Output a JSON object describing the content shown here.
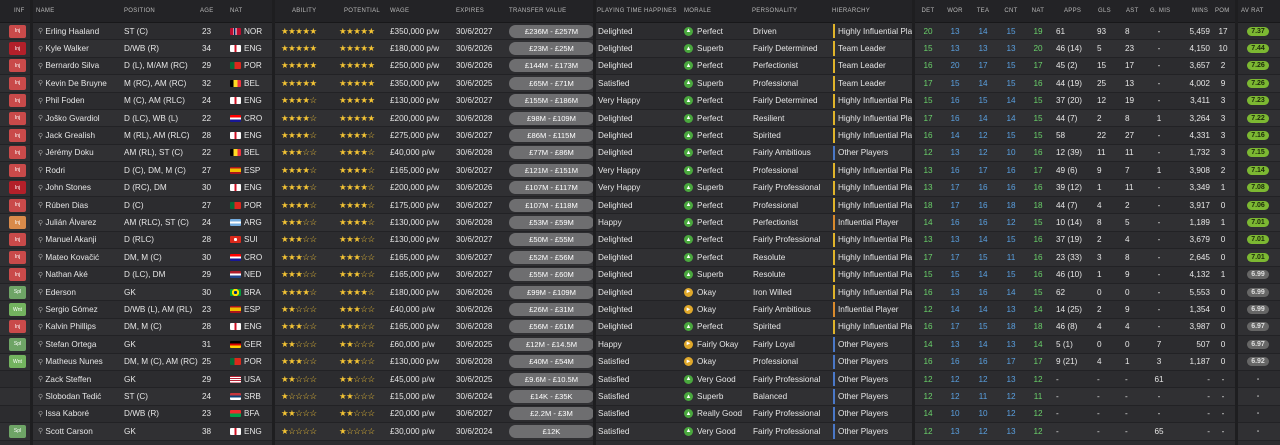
{
  "headers": {
    "inf": "INF",
    "name": "NAME",
    "position": "POSITION",
    "age": "AGE",
    "nat": "NAT",
    "ability": "ABILITY",
    "potential": "POTENTIAL",
    "wage": "WAGE",
    "expires": "EXPIRES",
    "transfer_value": "TRANSFER VALUE",
    "playing_time": "PLAYING TIME HAPPINESS",
    "morale": "MORALE",
    "personality": "PERSONALITY",
    "hierarchy": "HIERARCHY",
    "det": "DET",
    "wor": "WOR",
    "tea": "TEA",
    "cnt": "CNT",
    "natt": "NAT",
    "apps": "APPS",
    "gls": "GLS",
    "ast": "AST",
    "gmis": "G. MIS",
    "mins": "MINS",
    "pom": "POM",
    "avrat": "AV RAT"
  },
  "colors": {
    "inj": "#c94a4a",
    "inj_dark": "#b3202a",
    "spl": "#6ea466",
    "wnt": "#73b35f",
    "mood_green": "#4aa83e",
    "mood_yellow": "#e0a82a",
    "rating_green": "#7cb832",
    "rating_grey": "#666",
    "hier_yellow": "#e0b42a",
    "hier_orange": "#d98a2c",
    "hier_blue": "#4a78c8"
  },
  "rows": [
    {
      "inf": "Inj",
      "infc": "inj",
      "name": "Erling Haaland",
      "pos": "ST (C)",
      "age": "23",
      "nat": "NOR",
      "flag": "nor",
      "ab": "★★★★★",
      "po": "★★★★★",
      "wage": "£350,000 p/w",
      "exp": "30/6/2027",
      "tv": "£236M - £257M",
      "pt": "Delighted",
      "mood": "Perfect",
      "moodc": "g",
      "pers": "Driven",
      "hier": "Highly Influential Player",
      "hc": "y",
      "det": "20",
      "wor": "13",
      "tea": "14",
      "cnt": "15",
      "natt": "19",
      "apps": "61",
      "gls": "93",
      "ast": "8",
      "gmis": "-",
      "mins": "5,459",
      "pom": "17",
      "avr": "7.37",
      "ag": true
    },
    {
      "inf": "Inj",
      "infc": "inj2",
      "name": "Kyle Walker",
      "pos": "D/WB (R)",
      "age": "34",
      "nat": "ENG",
      "flag": "eng",
      "ab": "★★★★★",
      "po": "★★★★★",
      "wage": "£180,000 p/w",
      "exp": "30/6/2026",
      "tv": "£23M - £25M",
      "pt": "Delighted",
      "mood": "Superb",
      "moodc": "g",
      "pers": "Fairly Determined",
      "hier": "Team Leader",
      "hc": "y",
      "det": "15",
      "wor": "13",
      "tea": "13",
      "cnt": "13",
      "natt": "20",
      "apps": "46 (14)",
      "gls": "5",
      "ast": "23",
      "gmis": "-",
      "mins": "4,150",
      "pom": "10",
      "avr": "7.44",
      "ag": true
    },
    {
      "inf": "Inj",
      "infc": "inj",
      "name": "Bernardo Silva",
      "pos": "D (L), M/AM (RC)",
      "age": "29",
      "nat": "POR",
      "flag": "por",
      "ab": "★★★★★",
      "po": "★★★★★",
      "wage": "£250,000 p/w",
      "exp": "30/6/2026",
      "tv": "£144M - £173M",
      "pt": "Delighted",
      "mood": "Perfect",
      "moodc": "g",
      "pers": "Perfectionist",
      "hier": "Team Leader",
      "hc": "y",
      "det": "16",
      "wor": "20",
      "tea": "17",
      "cnt": "15",
      "natt": "17",
      "apps": "45 (2)",
      "gls": "15",
      "ast": "17",
      "gmis": "-",
      "mins": "3,657",
      "pom": "2",
      "avr": "7.26",
      "ag": true
    },
    {
      "inf": "Inj",
      "infc": "inj",
      "name": "Kevin De Bruyne",
      "pos": "M (RC), AM (RC)",
      "age": "32",
      "nat": "BEL",
      "flag": "bel",
      "ab": "★★★★★",
      "po": "★★★★★",
      "wage": "£350,000 p/w",
      "exp": "30/6/2025",
      "tv": "£65M - £71M",
      "pt": "Satisfied",
      "mood": "Superb",
      "moodc": "g",
      "pers": "Professional",
      "hier": "Team Leader",
      "hc": "y",
      "det": "17",
      "wor": "15",
      "tea": "14",
      "cnt": "15",
      "natt": "16",
      "apps": "44 (19)",
      "gls": "25",
      "ast": "13",
      "gmis": "-",
      "mins": "4,002",
      "pom": "9",
      "avr": "7.26",
      "ag": true
    },
    {
      "inf": "Inj",
      "infc": "inj",
      "name": "Phil Foden",
      "pos": "M (C), AM (RLC)",
      "age": "24",
      "nat": "ENG",
      "flag": "eng",
      "ab": "★★★★☆",
      "po": "★★★★★",
      "wage": "£130,000 p/w",
      "exp": "30/6/2027",
      "tv": "£155M - £186M",
      "pt": "Very Happy",
      "mood": "Perfect",
      "moodc": "g",
      "pers": "Fairly Determined",
      "hier": "Highly Influential Player",
      "hc": "y",
      "det": "15",
      "wor": "16",
      "tea": "15",
      "cnt": "14",
      "natt": "15",
      "apps": "37 (20)",
      "gls": "12",
      "ast": "19",
      "gmis": "-",
      "mins": "3,411",
      "pom": "3",
      "avr": "7.23",
      "ag": true
    },
    {
      "inf": "Inj",
      "infc": "inj",
      "name": "Joško Gvardiol",
      "pos": "D (LC), WB (L)",
      "age": "22",
      "nat": "CRO",
      "flag": "cro",
      "ab": "★★★★☆",
      "po": "★★★★★",
      "wage": "£200,000 p/w",
      "exp": "30/6/2028",
      "tv": "£98M - £109M",
      "pt": "Delighted",
      "mood": "Perfect",
      "moodc": "g",
      "pers": "Resilient",
      "hier": "Highly Influential Player",
      "hc": "y",
      "det": "17",
      "wor": "16",
      "tea": "14",
      "cnt": "14",
      "natt": "15",
      "apps": "44 (7)",
      "gls": "2",
      "ast": "8",
      "gmis": "1",
      "mins": "3,264",
      "pom": "3",
      "avr": "7.22",
      "ag": true
    },
    {
      "inf": "Inj",
      "infc": "inj",
      "name": "Jack Grealish",
      "pos": "M (RL), AM (RLC)",
      "age": "28",
      "nat": "ENG",
      "flag": "eng",
      "ab": "★★★★☆",
      "po": "★★★★☆",
      "wage": "£275,000 p/w",
      "exp": "30/6/2027",
      "tv": "£86M - £115M",
      "pt": "Delighted",
      "mood": "Perfect",
      "moodc": "g",
      "pers": "Spirited",
      "hier": "Highly Influential Player",
      "hc": "y",
      "det": "16",
      "wor": "14",
      "tea": "12",
      "cnt": "15",
      "natt": "15",
      "apps": "58",
      "gls": "22",
      "ast": "27",
      "gmis": "-",
      "mins": "4,331",
      "pom": "3",
      "avr": "7.16",
      "ag": true
    },
    {
      "inf": "Inj",
      "infc": "inj",
      "name": "Jérémy Doku",
      "pos": "AM (RL), ST (C)",
      "age": "22",
      "nat": "BEL",
      "flag": "bel",
      "ab": "★★★☆☆",
      "po": "★★★★☆",
      "wage": "£40,000 p/w",
      "exp": "30/6/2028",
      "tv": "£77M - £86M",
      "pt": "Delighted",
      "mood": "Perfect",
      "moodc": "g",
      "pers": "Fairly Ambitious",
      "hier": "Other Players",
      "hc": "b",
      "det": "12",
      "wor": "13",
      "tea": "12",
      "cnt": "10",
      "natt": "16",
      "apps": "12 (39)",
      "gls": "11",
      "ast": "11",
      "gmis": "-",
      "mins": "1,732",
      "pom": "3",
      "avr": "7.15",
      "ag": true
    },
    {
      "inf": "Inj",
      "infc": "inj",
      "name": "Rodri",
      "pos": "D (C), DM, M (C)",
      "age": "27",
      "nat": "ESP",
      "flag": "esp",
      "ab": "★★★★☆",
      "po": "★★★★☆",
      "wage": "£165,000 p/w",
      "exp": "30/6/2027",
      "tv": "£121M - £151M",
      "pt": "Very Happy",
      "mood": "Perfect",
      "moodc": "g",
      "pers": "Professional",
      "hier": "Highly Influential Player",
      "hc": "y",
      "det": "13",
      "wor": "16",
      "tea": "17",
      "cnt": "16",
      "natt": "17",
      "apps": "49 (6)",
      "gls": "9",
      "ast": "7",
      "gmis": "1",
      "mins": "3,908",
      "pom": "2",
      "avr": "7.14",
      "ag": true
    },
    {
      "inf": "Inj",
      "infc": "inj2",
      "name": "John Stones",
      "pos": "D (RC), DM",
      "age": "30",
      "nat": "ENG",
      "flag": "eng",
      "ab": "★★★★☆",
      "po": "★★★★☆",
      "wage": "£200,000 p/w",
      "exp": "30/6/2026",
      "tv": "£107M - £117M",
      "pt": "Very Happy",
      "mood": "Superb",
      "moodc": "g",
      "pers": "Fairly Professional",
      "hier": "Highly Influential Player",
      "hc": "y",
      "det": "13",
      "wor": "17",
      "tea": "16",
      "cnt": "16",
      "natt": "16",
      "apps": "39 (12)",
      "gls": "1",
      "ast": "11",
      "gmis": "-",
      "mins": "3,349",
      "pom": "1",
      "avr": "7.08",
      "ag": true
    },
    {
      "inf": "Inj",
      "infc": "inj",
      "name": "Rúben Dias",
      "pos": "D (C)",
      "age": "27",
      "nat": "POR",
      "flag": "por",
      "ab": "★★★★☆",
      "po": "★★★★☆",
      "wage": "£175,000 p/w",
      "exp": "30/6/2027",
      "tv": "£107M - £118M",
      "pt": "Delighted",
      "mood": "Perfect",
      "moodc": "g",
      "pers": "Professional",
      "hier": "Highly Influential Player",
      "hc": "y",
      "det": "18",
      "wor": "17",
      "tea": "16",
      "cnt": "18",
      "natt": "18",
      "apps": "44 (7)",
      "gls": "4",
      "ast": "2",
      "gmis": "-",
      "mins": "3,917",
      "pom": "0",
      "avr": "7.06",
      "ag": true
    },
    {
      "inf": "Inj",
      "infc": "infor",
      "name": "Julián Álvarez",
      "pos": "AM (RLC), ST (C)",
      "age": "24",
      "nat": "ARG",
      "flag": "arg",
      "ab": "★★★☆☆",
      "po": "★★★★☆",
      "wage": "£130,000 p/w",
      "exp": "30/6/2028",
      "tv": "£53M - £59M",
      "pt": "Happy",
      "mood": "Perfect",
      "moodc": "g",
      "pers": "Perfectionist",
      "hier": "Influential Player",
      "hc": "o",
      "det": "14",
      "wor": "16",
      "tea": "16",
      "cnt": "12",
      "natt": "15",
      "apps": "10 (14)",
      "gls": "8",
      "ast": "5",
      "gmis": "-",
      "mins": "1,189",
      "pom": "1",
      "avr": "7.01",
      "ag": true
    },
    {
      "inf": "Inj",
      "infc": "inj",
      "name": "Manuel Akanji",
      "pos": "D (RLC)",
      "age": "28",
      "nat": "SUI",
      "flag": "sui",
      "ab": "★★★☆☆",
      "po": "★★★☆☆",
      "wage": "£130,000 p/w",
      "exp": "30/6/2027",
      "tv": "£50M - £55M",
      "pt": "Delighted",
      "mood": "Perfect",
      "moodc": "g",
      "pers": "Fairly Professional",
      "hier": "Highly Influential Player",
      "hc": "y",
      "det": "13",
      "wor": "13",
      "tea": "14",
      "cnt": "15",
      "natt": "16",
      "apps": "37 (19)",
      "gls": "2",
      "ast": "4",
      "gmis": "-",
      "mins": "3,679",
      "pom": "0",
      "avr": "7.01",
      "ag": true
    },
    {
      "inf": "Inj",
      "infc": "inj",
      "name": "Mateo Kovačić",
      "pos": "DM, M (C)",
      "age": "30",
      "nat": "CRO",
      "flag": "cro",
      "ab": "★★★☆☆",
      "po": "★★★☆☆",
      "wage": "£165,000 p/w",
      "exp": "30/6/2027",
      "tv": "£52M - £56M",
      "pt": "Delighted",
      "mood": "Perfect",
      "moodc": "g",
      "pers": "Resolute",
      "hier": "Highly Influential Player",
      "hc": "y",
      "det": "17",
      "wor": "17",
      "tea": "15",
      "cnt": "11",
      "natt": "16",
      "apps": "23 (33)",
      "gls": "3",
      "ast": "8",
      "gmis": "-",
      "mins": "2,645",
      "pom": "0",
      "avr": "7.01",
      "ag": true
    },
    {
      "inf": "Inj",
      "infc": "inj",
      "name": "Nathan Aké",
      "pos": "D (LC), DM",
      "age": "29",
      "nat": "NED",
      "flag": "ned",
      "ab": "★★★☆☆",
      "po": "★★★☆☆",
      "wage": "£165,000 p/w",
      "exp": "30/6/2027",
      "tv": "£55M - £60M",
      "pt": "Delighted",
      "mood": "Superb",
      "moodc": "g",
      "pers": "Resolute",
      "hier": "Highly Influential Player",
      "hc": "y",
      "det": "15",
      "wor": "15",
      "tea": "14",
      "cnt": "15",
      "natt": "16",
      "apps": "46 (10)",
      "gls": "1",
      "ast": "9",
      "gmis": "-",
      "mins": "4,132",
      "pom": "1",
      "avr": "6.99",
      "ag": false
    },
    {
      "inf": "Spl",
      "infc": "spl",
      "name": "Ederson",
      "pos": "GK",
      "age": "30",
      "nat": "BRA",
      "flag": "bra",
      "ab": "★★★★☆",
      "po": "★★★★☆",
      "wage": "£180,000 p/w",
      "exp": "30/6/2026",
      "tv": "£99M - £109M",
      "pt": "Delighted",
      "mood": "Okay",
      "moodc": "y",
      "pers": "Iron Willed",
      "hier": "Highly Influential Player",
      "hc": "y",
      "det": "16",
      "wor": "13",
      "tea": "16",
      "cnt": "14",
      "natt": "15",
      "apps": "62",
      "gls": "0",
      "ast": "0",
      "gmis": "-",
      "mins": "5,553",
      "pom": "0",
      "avr": "6.99",
      "ag": false
    },
    {
      "inf": "Wnt",
      "infc": "wnt",
      "name": "Sergio Gómez",
      "pos": "D/WB (L), AM (RL)",
      "age": "23",
      "nat": "ESP",
      "flag": "esp",
      "ab": "★★☆☆☆",
      "po": "★★★☆☆",
      "wage": "£40,000 p/w",
      "exp": "30/6/2026",
      "tv": "£26M - £31M",
      "pt": "Delighted",
      "mood": "Okay",
      "moodc": "y",
      "pers": "Fairly Ambitious",
      "hier": "Influential Player",
      "hc": "o",
      "det": "12",
      "wor": "14",
      "tea": "14",
      "cnt": "13",
      "natt": "14",
      "apps": "14 (25)",
      "gls": "2",
      "ast": "9",
      "gmis": "-",
      "mins": "1,354",
      "pom": "0",
      "avr": "6.99",
      "ag": false
    },
    {
      "inf": "Inj",
      "infc": "inj",
      "name": "Kalvin Phillips",
      "pos": "DM, M (C)",
      "age": "28",
      "nat": "ENG",
      "flag": "eng",
      "ab": "★★★☆☆",
      "po": "★★★☆☆",
      "wage": "£165,000 p/w",
      "exp": "30/6/2028",
      "tv": "£56M - £61M",
      "pt": "Delighted",
      "mood": "Perfect",
      "moodc": "g",
      "pers": "Spirited",
      "hier": "Highly Influential Player",
      "hc": "y",
      "det": "16",
      "wor": "17",
      "tea": "15",
      "cnt": "18",
      "natt": "18",
      "apps": "46 (8)",
      "gls": "4",
      "ast": "4",
      "gmis": "-",
      "mins": "3,987",
      "pom": "0",
      "avr": "6.97",
      "ag": false
    },
    {
      "inf": "Spl",
      "infc": "spl",
      "name": "Stefan Ortega",
      "pos": "GK",
      "age": "31",
      "nat": "GER",
      "flag": "ger",
      "ab": "★★☆☆☆",
      "po": "★★☆☆☆",
      "wage": "£60,000 p/w",
      "exp": "30/6/2025",
      "tv": "£12M - £14.5M",
      "pt": "Happy",
      "mood": "Fairly Okay",
      "moodc": "y",
      "pers": "Fairly Loyal",
      "hier": "Other Players",
      "hc": "b",
      "det": "14",
      "wor": "13",
      "tea": "14",
      "cnt": "13",
      "natt": "14",
      "apps": "5 (1)",
      "gls": "0",
      "ast": "0",
      "gmis": "7",
      "mins": "507",
      "pom": "0",
      "avr": "6.97",
      "ag": false
    },
    {
      "inf": "Wnt",
      "infc": "wnt",
      "name": "Matheus Nunes",
      "pos": "DM, M (C), AM (RC)",
      "age": "25",
      "nat": "POR",
      "flag": "por",
      "ab": "★★★☆☆",
      "po": "★★★☆☆",
      "wage": "£130,000 p/w",
      "exp": "30/6/2028",
      "tv": "£40M - £54M",
      "pt": "Satisfied",
      "mood": "Okay",
      "moodc": "y",
      "pers": "Professional",
      "hier": "Other Players",
      "hc": "b",
      "det": "16",
      "wor": "16",
      "tea": "16",
      "cnt": "17",
      "natt": "17",
      "apps": "9 (21)",
      "gls": "4",
      "ast": "1",
      "gmis": "3",
      "mins": "1,187",
      "pom": "0",
      "avr": "6.92",
      "ag": false
    },
    {
      "inf": "",
      "infc": "",
      "name": "Zack Steffen",
      "pos": "GK",
      "age": "29",
      "nat": "USA",
      "flag": "usa",
      "ab": "★★☆☆☆",
      "po": "★★☆☆☆",
      "wage": "£45,000 p/w",
      "exp": "30/6/2025",
      "tv": "£9.6M - £10.5M",
      "pt": "Satisfied",
      "mood": "Very Good",
      "moodc": "g",
      "pers": "Fairly Professional",
      "hier": "Other Players",
      "hc": "b",
      "det": "12",
      "wor": "12",
      "tea": "12",
      "cnt": "13",
      "natt": "12",
      "apps": "-",
      "gls": "-",
      "ast": "-",
      "gmis": "61",
      "mins": "-",
      "pom": "-",
      "avr": "-",
      "ag": false
    },
    {
      "inf": "",
      "infc": "",
      "name": "Slobodan Tedić",
      "pos": "ST (C)",
      "age": "24",
      "nat": "SRB",
      "flag": "srb",
      "ab": "★☆☆☆☆",
      "po": "★★☆☆☆",
      "wage": "£15,000 p/w",
      "exp": "30/6/2024",
      "tv": "£14K - £35K",
      "pt": "Satisfied",
      "mood": "Superb",
      "moodc": "g",
      "pers": "Balanced",
      "hier": "Other Players",
      "hc": "b",
      "det": "12",
      "wor": "12",
      "tea": "11",
      "cnt": "12",
      "natt": "11",
      "apps": "-",
      "gls": "-",
      "ast": "-",
      "gmis": "-",
      "mins": "-",
      "pom": "-",
      "avr": "-",
      "ag": false
    },
    {
      "inf": "",
      "infc": "",
      "name": "Issa Kaboré",
      "pos": "D/WB (R)",
      "age": "23",
      "nat": "BFA",
      "flag": "bfa",
      "ab": "★★☆☆☆",
      "po": "★★☆☆☆",
      "wage": "£20,000 p/w",
      "exp": "30/6/2027",
      "tv": "£2.2M - £3M",
      "pt": "Satisfied",
      "mood": "Really Good",
      "moodc": "g",
      "pers": "Fairly Professional",
      "hier": "Other Players",
      "hc": "b",
      "det": "14",
      "wor": "10",
      "tea": "10",
      "cnt": "12",
      "natt": "12",
      "apps": "-",
      "gls": "-",
      "ast": "-",
      "gmis": "-",
      "mins": "-",
      "pom": "-",
      "avr": "-",
      "ag": false
    },
    {
      "inf": "Spl",
      "infc": "spl",
      "name": "Scott Carson",
      "pos": "GK",
      "age": "38",
      "nat": "ENG",
      "flag": "eng",
      "ab": "★☆☆☆☆",
      "po": "★☆☆☆☆",
      "wage": "£30,000 p/w",
      "exp": "30/6/2024",
      "tv": "£12K",
      "pt": "Satisfied",
      "mood": "Very Good",
      "moodc": "g",
      "pers": "Fairly Professional",
      "hier": "Other Players",
      "hc": "b",
      "det": "12",
      "wor": "13",
      "tea": "12",
      "cnt": "13",
      "natt": "12",
      "apps": "-",
      "gls": "-",
      "ast": "-",
      "gmis": "65",
      "mins": "-",
      "pom": "-",
      "avr": "-",
      "ag": false
    }
  ]
}
